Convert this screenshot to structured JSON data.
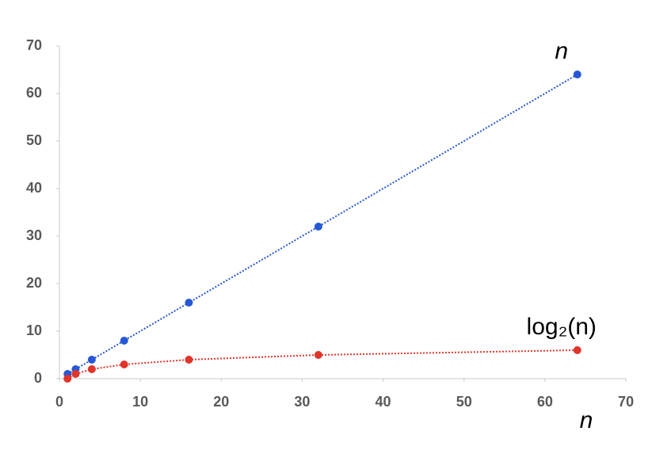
{
  "chart_data": {
    "type": "scatter",
    "x_label": "n",
    "x": [
      1,
      2,
      4,
      8,
      16,
      32,
      64
    ],
    "series": [
      {
        "name": "n",
        "color": "#2757d6",
        "values": [
          1,
          2,
          4,
          8,
          16,
          32,
          64
        ]
      },
      {
        "name": "log₂(n)",
        "color": "#e0352b",
        "values": [
          0,
          1,
          2,
          3,
          4,
          5,
          6
        ]
      }
    ],
    "xlim": [
      0,
      70
    ],
    "xticks": [
      0,
      10,
      20,
      30,
      40,
      50,
      60,
      70
    ],
    "ylim": [
      0,
      70
    ],
    "yticks": [
      0,
      10,
      20,
      30,
      40,
      50,
      60,
      70
    ],
    "line_style": "dotted",
    "grid": false
  }
}
